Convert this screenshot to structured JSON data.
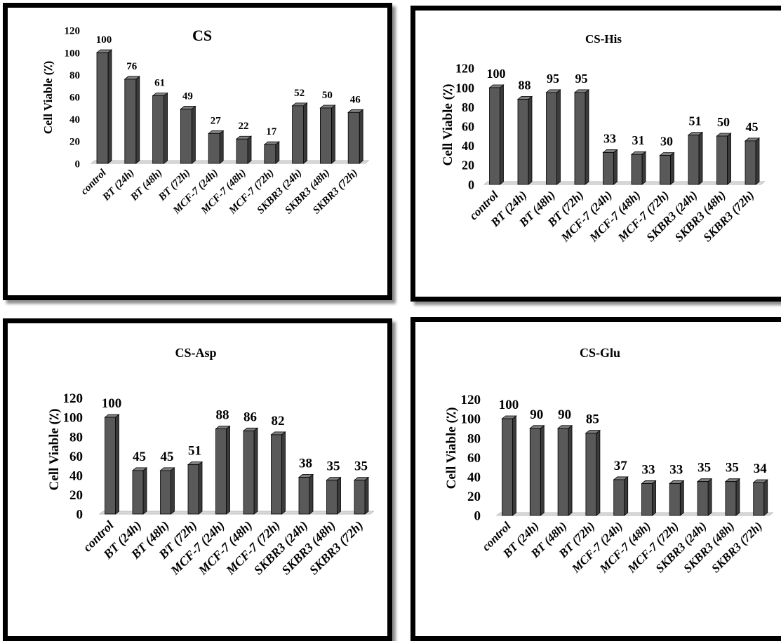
{
  "chart_data": [
    {
      "type": "bar",
      "title": "CS",
      "ylabel": "Cell Viable (٪)",
      "xlabel": "",
      "ylim": [
        0,
        120
      ],
      "yticks": [
        0,
        20,
        40,
        60,
        80,
        100,
        120
      ],
      "categories": [
        "control",
        "BT (24h)",
        "BT (48h)",
        "BT (72h)",
        "MCF-7 (24h)",
        "MCF-7 (48h)",
        "MCF-7 (72h)",
        "SKBR3 (24h)",
        "SKBR3 (48h)",
        "SKBR3 (72h)"
      ],
      "values": [
        100,
        76,
        61,
        49,
        27,
        22,
        17,
        52,
        50,
        46
      ],
      "bar_color": "#595959",
      "grid": false,
      "legend": "none"
    },
    {
      "type": "bar",
      "title": "CS-His",
      "ylabel": "Cell Viable (٪)",
      "xlabel": "",
      "ylim": [
        0,
        120
      ],
      "yticks": [
        0,
        20,
        40,
        60,
        80,
        100,
        120
      ],
      "categories": [
        "control",
        "BT (24h)",
        "BT (48h)",
        "BT (72h)",
        "MCF-7 (24h)",
        "MCF-7 (48h)",
        "MCF-7 (72h)",
        "SKBR3 (24h)",
        "SKBR3 (48h)",
        "SKBR3 (72h)"
      ],
      "values": [
        100,
        88,
        95,
        95,
        33,
        31,
        30,
        51,
        50,
        45
      ],
      "bar_color": "#595959",
      "grid": false,
      "legend": "none"
    },
    {
      "type": "bar",
      "title": "CS-Asp",
      "ylabel": "Cell Viable (٪)",
      "xlabel": "",
      "ylim": [
        0,
        120
      ],
      "yticks": [
        0,
        20,
        40,
        60,
        80,
        100,
        120
      ],
      "categories": [
        "control",
        "BT (24h)",
        "BT (48h)",
        "BT (72h)",
        "MCF-7 (24h)",
        "MCF-7 (48h)",
        "MCF-7 (72h)",
        "SKBR3 (24h)",
        "SKBR3 (48h)",
        "SKBR3 (72h)"
      ],
      "values": [
        100,
        45,
        45,
        51,
        88,
        86,
        82,
        38,
        35,
        35
      ],
      "bar_color": "#595959",
      "grid": false,
      "legend": "none"
    },
    {
      "type": "bar",
      "title": "CS-Glu",
      "ylabel": "Cell Viable (٪)",
      "xlabel": "",
      "ylim": [
        0,
        120
      ],
      "yticks": [
        0,
        20,
        40,
        60,
        80,
        100,
        120
      ],
      "categories": [
        "control",
        "BT (24h)",
        "BT (48h)",
        "BT (72h)",
        "MCF-7 (24h)",
        "MCF-7 (48h)",
        "MCF-7 (72h)",
        "SKBR3 (24h)",
        "SKBR3 (48h)",
        "SKBR3 (72h)"
      ],
      "values": [
        100,
        90,
        90,
        85,
        37,
        33,
        33,
        35,
        35,
        34
      ],
      "bar_color": "#595959",
      "grid": false,
      "legend": "none"
    }
  ]
}
